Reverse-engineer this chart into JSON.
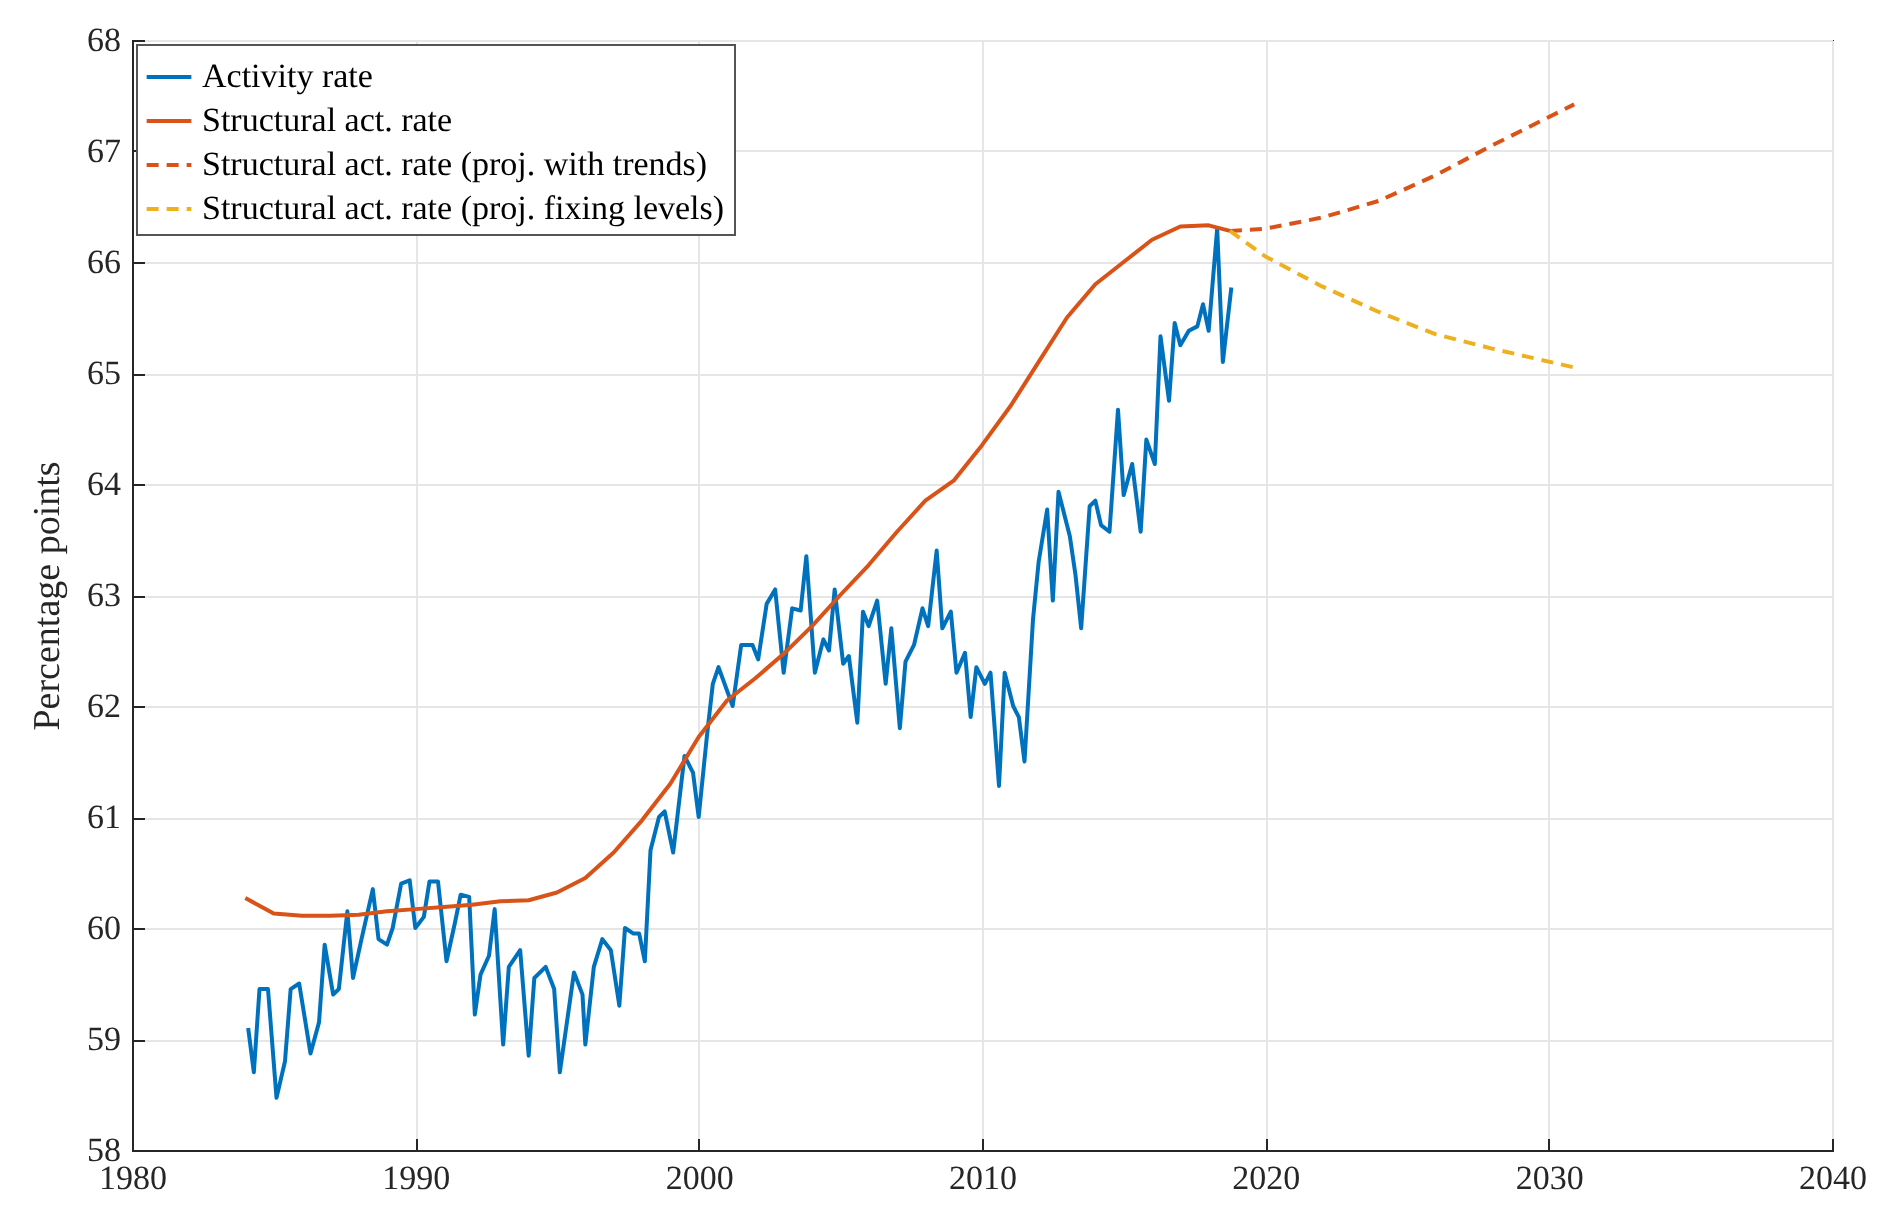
{
  "chart_data": {
    "type": "line",
    "ylabel": "Percentage points",
    "xlim": [
      1980,
      2040
    ],
    "ylim": [
      58,
      68
    ],
    "xticks": [
      1980,
      1990,
      2000,
      2010,
      2020,
      2030,
      2040
    ],
    "yticks": [
      58,
      59,
      60,
      61,
      62,
      63,
      64,
      65,
      66,
      67,
      68
    ],
    "grid": true,
    "legend": "top left",
    "series": [
      {
        "name": "Activity rate",
        "color": "#0072bd",
        "line_style": "solid",
        "x": [
          1984.1,
          1984.3,
          1984.5,
          1984.8,
          1985.1,
          1985.4,
          1985.6,
          1985.9,
          1986.3,
          1986.6,
          1986.8,
          1987.1,
          1987.3,
          1987.6,
          1987.8,
          1988.1,
          1988.5,
          1988.7,
          1989.0,
          1989.2,
          1989.5,
          1989.8,
          1990.0,
          1990.3,
          1990.5,
          1990.8,
          1991.1,
          1991.4,
          1991.6,
          1991.9,
          1992.1,
          1992.3,
          1992.6,
          1992.8,
          1993.1,
          1993.3,
          1993.7,
          1994.0,
          1994.2,
          1994.6,
          1994.9,
          1995.1,
          1995.6,
          1995.9,
          1996.0,
          1996.3,
          1996.6,
          1996.9,
          1997.2,
          1997.4,
          1997.7,
          1997.9,
          1998.1,
          1998.3,
          1998.6,
          1998.8,
          1999.1,
          1999.5,
          1999.8,
          2000.0,
          2000.3,
          2000.5,
          2000.7,
          2001.2,
          2001.5,
          2001.9,
          2002.1,
          2002.4,
          2002.7,
          2003.0,
          2003.3,
          2003.6,
          2003.8,
          2004.1,
          2004.4,
          2004.6,
          2004.8,
          2005.1,
          2005.3,
          2005.6,
          2005.8,
          2006.0,
          2006.3,
          2006.6,
          2006.8,
          2007.1,
          2007.3,
          2007.6,
          2007.9,
          2008.1,
          2008.4,
          2008.6,
          2008.9,
          2009.1,
          2009.4,
          2009.6,
          2009.8,
          2010.1,
          2010.3,
          2010.6,
          2010.8,
          2011.1,
          2011.3,
          2011.5,
          2011.8,
          2012.0,
          2012.3,
          2012.5,
          2012.7,
          2013.1,
          2013.3,
          2013.5,
          2013.8,
          2014.0,
          2014.2,
          2014.5,
          2014.8,
          2015.0,
          2015.3,
          2015.6,
          2015.8,
          2016.1,
          2016.3,
          2016.6,
          2016.8,
          2017.0,
          2017.3,
          2017.6,
          2017.8,
          2018.0,
          2018.3,
          2018.5,
          2018.8
        ],
        "values": [
          59.1,
          58.7,
          59.45,
          59.45,
          58.47,
          58.8,
          59.45,
          59.5,
          58.87,
          59.15,
          59.85,
          59.4,
          59.45,
          60.15,
          59.55,
          59.9,
          60.35,
          59.9,
          59.85,
          60.0,
          60.4,
          60.43,
          60.0,
          60.1,
          60.42,
          60.42,
          59.7,
          60.05,
          60.3,
          60.28,
          59.22,
          59.58,
          59.75,
          60.17,
          58.95,
          59.65,
          59.8,
          58.85,
          59.55,
          59.65,
          59.45,
          58.7,
          59.6,
          59.4,
          58.95,
          59.65,
          59.9,
          59.8,
          59.3,
          60.0,
          59.95,
          59.95,
          59.7,
          60.7,
          61.0,
          61.05,
          60.68,
          61.55,
          61.4,
          61.0,
          61.75,
          62.2,
          62.35,
          62.0,
          62.55,
          62.55,
          62.42,
          62.92,
          63.05,
          62.3,
          62.88,
          62.86,
          63.35,
          62.3,
          62.6,
          62.5,
          63.05,
          62.38,
          62.45,
          61.85,
          62.85,
          62.72,
          62.95,
          62.2,
          62.7,
          61.8,
          62.4,
          62.55,
          62.88,
          62.72,
          63.4,
          62.7,
          62.85,
          62.3,
          62.48,
          61.9,
          62.35,
          62.2,
          62.3,
          61.28,
          62.3,
          62.0,
          61.9,
          61.5,
          62.78,
          63.3,
          63.77,
          62.95,
          63.93,
          63.53,
          63.18,
          62.7,
          63.8,
          63.85,
          63.63,
          63.57,
          64.67,
          63.9,
          64.18,
          63.57,
          64.4,
          64.18,
          65.33,
          64.75,
          65.45,
          65.25,
          65.38,
          65.42,
          65.62,
          65.38,
          66.3,
          65.1,
          65.77
        ]
      },
      {
        "name": "Structural act. rate",
        "color": "#d95319",
        "line_style": "solid",
        "x": [
          1984,
          1985,
          1986,
          1987,
          1988,
          1989,
          1990,
          1991,
          1992,
          1993,
          1994,
          1995,
          1996,
          1997,
          1998,
          1999,
          2000,
          2001,
          2002,
          2003,
          2004,
          2005,
          2006,
          2007,
          2008,
          2009,
          2010,
          2011,
          2012,
          2013,
          2014,
          2015,
          2016,
          2017,
          2018,
          2018.75
        ],
        "values": [
          60.27,
          60.13,
          60.11,
          60.11,
          60.12,
          60.15,
          60.17,
          60.19,
          60.21,
          60.24,
          60.25,
          60.32,
          60.45,
          60.68,
          60.97,
          61.3,
          61.72,
          62.05,
          62.25,
          62.47,
          62.72,
          63.0,
          63.27,
          63.57,
          63.85,
          64.03,
          64.35,
          64.7,
          65.1,
          65.5,
          65.8,
          66.0,
          66.2,
          66.32,
          66.33,
          66.28
        ]
      },
      {
        "name": "Structural act. rate (proj. with trends)",
        "color": "#d95319",
        "line_style": "dashed",
        "x": [
          2018.75,
          2020,
          2022,
          2024,
          2026,
          2028,
          2030.9
        ],
        "values": [
          66.28,
          66.3,
          66.4,
          66.55,
          66.78,
          67.05,
          67.42
        ]
      },
      {
        "name": "Structural act. rate (proj. fixing levels)",
        "color": "#edb120",
        "line_style": "dashed",
        "x": [
          2018.75,
          2020,
          2022,
          2024,
          2026,
          2028,
          2030.9
        ],
        "values": [
          66.28,
          66.05,
          65.78,
          65.55,
          65.35,
          65.22,
          65.05
        ]
      }
    ]
  }
}
